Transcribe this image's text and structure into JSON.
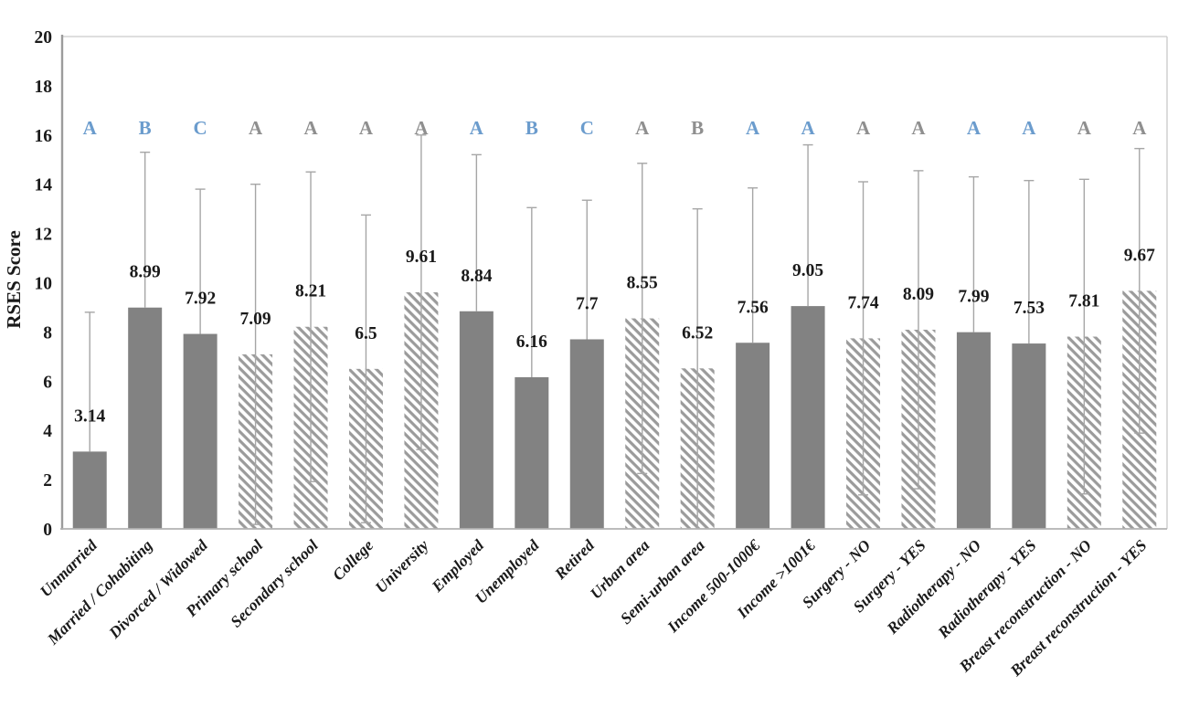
{
  "chart_data": {
    "type": "bar",
    "title": "",
    "xlabel": "",
    "ylabel": "RSES Score",
    "ylim": [
      0,
      20
    ],
    "ytick_step": 2,
    "yticks": [
      "0",
      "2",
      "4",
      "6",
      "8",
      "10",
      "12",
      "14",
      "16",
      "18",
      "20"
    ],
    "grid": false,
    "legend": "none",
    "categories": [
      "Unmarried",
      "Married / Cohabiting",
      "Divorced / Widowed",
      "Primary school",
      "Secondary school",
      "College",
      "University",
      "Employed",
      "Unemployed",
      "Retired",
      "Urban area",
      "Semi-urban area",
      "Income 500-1000€",
      "Income >1001€",
      "Surgery - NO",
      "Surgery - YES",
      "Radiotherapy - NO",
      "Radiotherapy - YES",
      "Breast reconstruction - NO",
      "Breast reconstruction - YES"
    ],
    "values": [
      3.14,
      8.99,
      7.92,
      7.09,
      8.21,
      6.5,
      9.61,
      8.84,
      6.16,
      7.7,
      8.55,
      6.52,
      7.56,
      9.05,
      7.74,
      8.09,
      7.99,
      7.53,
      7.81,
      9.67
    ],
    "value_labels": [
      "3.14",
      "8.99",
      "7.92",
      "7.09",
      "8.21",
      "6.5",
      "9.61",
      "8.84",
      "6.16",
      "7.7",
      "8.55",
      "6.52",
      "7.56",
      "9.05",
      "7.74",
      "8.09",
      "7.99",
      "7.53",
      "7.81",
      "9.67"
    ],
    "error_upper": [
      8.8,
      15.3,
      13.8,
      14.0,
      14.5,
      12.75,
      16.0,
      15.2,
      13.05,
      13.35,
      14.85,
      13.0,
      13.85,
      15.6,
      14.1,
      14.55,
      14.3,
      14.15,
      14.2,
      15.45
    ],
    "error_lower": [
      0,
      2.68,
      2.04,
      0.18,
      1.92,
      0.25,
      3.22,
      2.48,
      0,
      2.05,
      2.25,
      0.04,
      1.27,
      2.5,
      1.38,
      1.63,
      1.68,
      0.91,
      1.42,
      3.89
    ],
    "significance_letters": [
      "A",
      "B",
      "C",
      "A",
      "A",
      "A",
      "A",
      "A",
      "B",
      "C",
      "A",
      "B",
      "A",
      "A",
      "A",
      "A",
      "A",
      "A",
      "A",
      "A"
    ],
    "significance_letter_colors": [
      "blue",
      "blue",
      "blue",
      "gray",
      "gray",
      "gray",
      "gray",
      "blue",
      "blue",
      "blue",
      "gray",
      "gray",
      "blue",
      "blue",
      "gray",
      "gray",
      "blue",
      "blue",
      "gray",
      "gray"
    ],
    "bar_fill_styles": [
      "solid",
      "solid",
      "solid",
      "hatch",
      "hatch",
      "hatch",
      "hatch",
      "solid",
      "solid",
      "solid",
      "hatch",
      "hatch",
      "solid",
      "solid",
      "hatch",
      "hatch",
      "solid",
      "solid",
      "hatch",
      "hatch"
    ],
    "colors": {
      "bar_solid": "#828282",
      "hatch_stripe": "#9b9b9b",
      "hatch_background": "#ffffff",
      "error_bar": "#a6a6a6",
      "letter_blue": "#6b9ccd",
      "letter_gray": "#8f8f8f",
      "axis_line": "#9c9c9c",
      "plot_border": "#c9c9c9",
      "baseline": "#b3b3b3",
      "text": "#1a1a1a"
    }
  }
}
